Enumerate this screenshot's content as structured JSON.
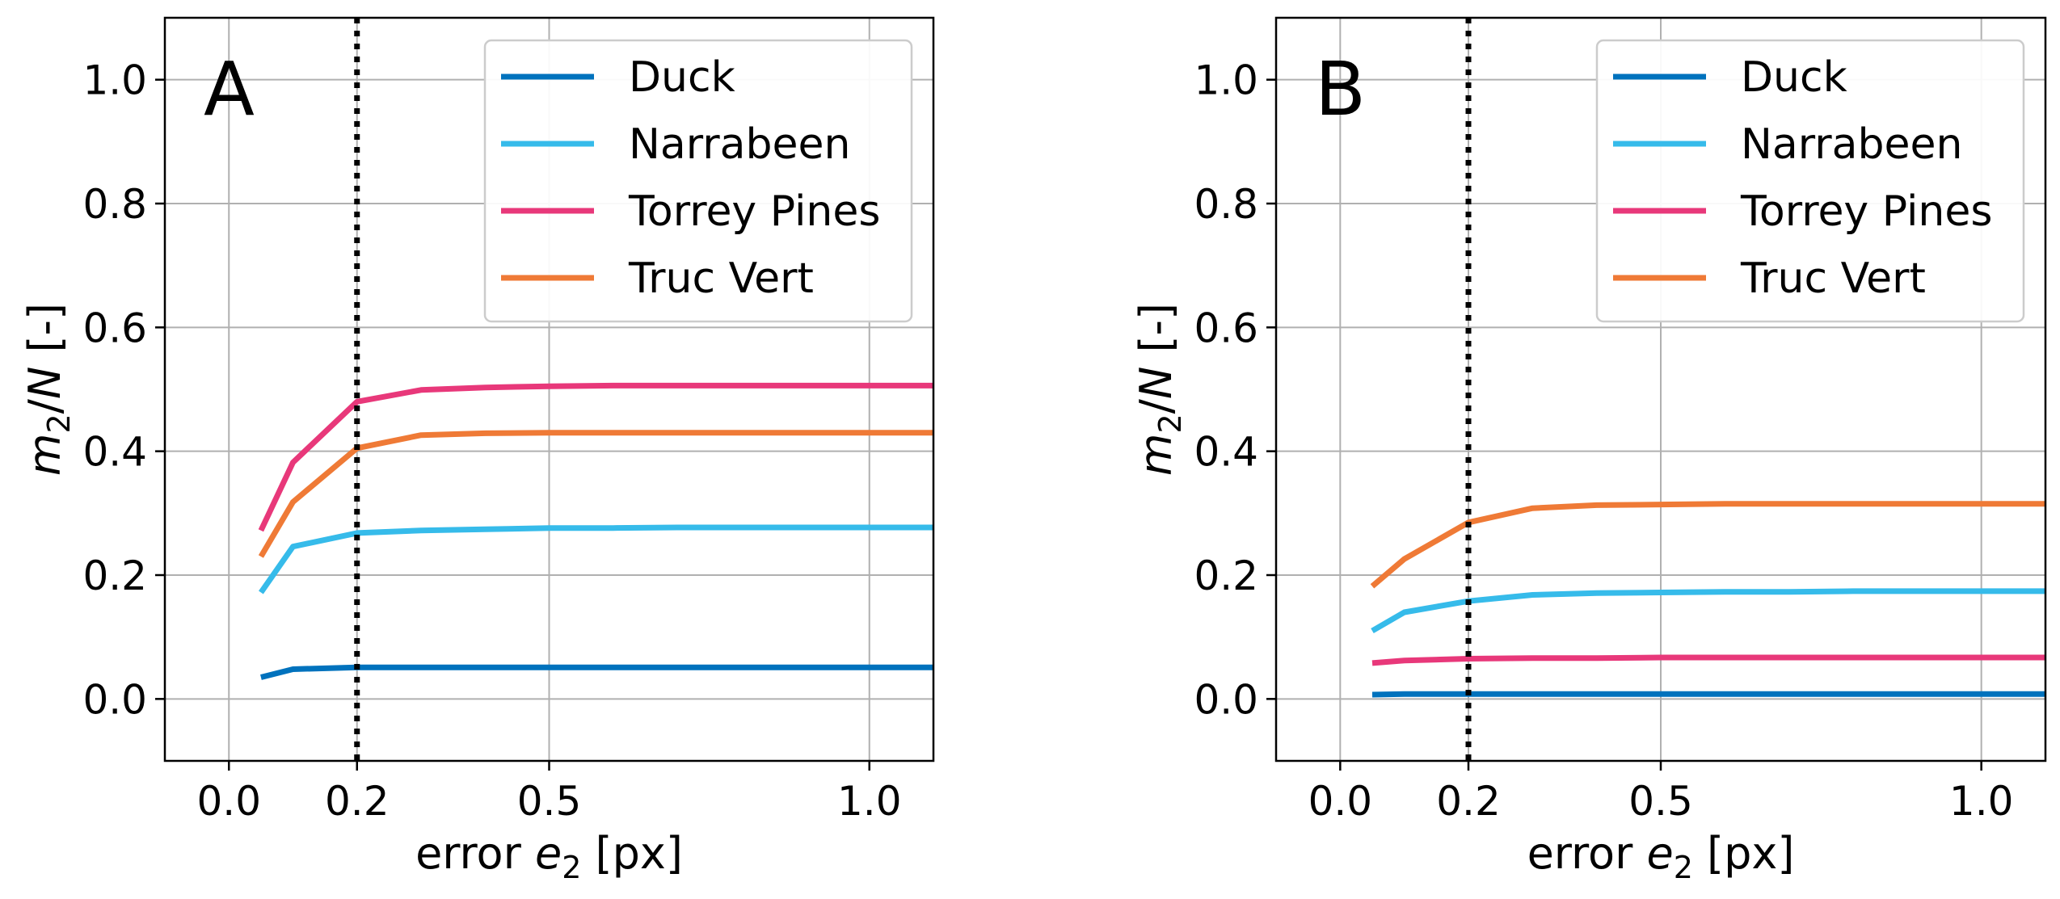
{
  "chart_data": [
    {
      "type": "line",
      "panel_label": "A",
      "xlabel": "error e_2 [px]",
      "xlabel_main": "error ",
      "xlabel_var": "e",
      "xlabel_sub": "2",
      "xlabel_unit": " [px]",
      "ylabel": "m_2/N [-]",
      "ylabel_var": "m",
      "ylabel_sub": "2",
      "ylabel_rest": "/",
      "ylabel_var2": "N",
      "ylabel_unit": " [-]",
      "xlim": [
        -0.1,
        1.1
      ],
      "ylim": [
        -0.1,
        1.1
      ],
      "xticks": [
        0.0,
        0.2,
        0.5,
        1.0
      ],
      "xtick_labels": [
        "0.0",
        "0.2",
        "0.5",
        "1.0"
      ],
      "yticks": [
        0.0,
        0.2,
        0.4,
        0.6,
        0.8,
        1.0
      ],
      "ytick_labels": [
        "0.0",
        "0.2",
        "0.4",
        "0.6",
        "0.8",
        "1.0"
      ],
      "grid": true,
      "legend_position": "upper-right",
      "vline_x": 0.2,
      "x": [
        0.05,
        0.1,
        0.2,
        0.3,
        0.4,
        0.5,
        0.6,
        0.7,
        0.8,
        0.9,
        1.0,
        1.1
      ],
      "series": [
        {
          "name": "Duck",
          "color": "#0072bd",
          "values": [
            0.035,
            0.048,
            0.051,
            0.051,
            0.051,
            0.051,
            0.051,
            0.051,
            0.051,
            0.051,
            0.051,
            0.051
          ]
        },
        {
          "name": "Narrabeen",
          "color": "#36bbea",
          "values": [
            0.172,
            0.246,
            0.268,
            0.272,
            0.274,
            0.276,
            0.276,
            0.277,
            0.277,
            0.277,
            0.277,
            0.277
          ]
        },
        {
          "name": "Torrey Pines",
          "color": "#e8387a",
          "values": [
            0.272,
            0.382,
            0.48,
            0.499,
            0.503,
            0.505,
            0.506,
            0.506,
            0.506,
            0.506,
            0.506,
            0.506
          ]
        },
        {
          "name": "Truc Vert",
          "color": "#ef7a36",
          "values": [
            0.23,
            0.318,
            0.405,
            0.426,
            0.429,
            0.43,
            0.43,
            0.43,
            0.43,
            0.43,
            0.43,
            0.43
          ]
        }
      ]
    },
    {
      "type": "line",
      "panel_label": "B",
      "xlabel": "error e_2 [px]",
      "xlabel_main": "error ",
      "xlabel_var": "e",
      "xlabel_sub": "2",
      "xlabel_unit": " [px]",
      "ylabel": "m_2/N [-]",
      "ylabel_var": "m",
      "ylabel_sub": "2",
      "ylabel_rest": "/",
      "ylabel_var2": "N",
      "ylabel_unit": " [-]",
      "xlim": [
        -0.1,
        1.1
      ],
      "ylim": [
        -0.1,
        1.1
      ],
      "xticks": [
        0.0,
        0.2,
        0.5,
        1.0
      ],
      "xtick_labels": [
        "0.0",
        "0.2",
        "0.5",
        "1.0"
      ],
      "yticks": [
        0.0,
        0.2,
        0.4,
        0.6,
        0.8,
        1.0
      ],
      "ytick_labels": [
        "0.0",
        "0.2",
        "0.4",
        "0.6",
        "0.8",
        "1.0"
      ],
      "grid": true,
      "legend_position": "upper-right",
      "vline_x": 0.2,
      "x": [
        0.05,
        0.1,
        0.2,
        0.3,
        0.4,
        0.5,
        0.6,
        0.7,
        0.8,
        0.9,
        1.0,
        1.1
      ],
      "series": [
        {
          "name": "Duck",
          "color": "#0072bd",
          "values": [
            0.007,
            0.008,
            0.008,
            0.008,
            0.008,
            0.008,
            0.008,
            0.008,
            0.008,
            0.008,
            0.008,
            0.008
          ]
        },
        {
          "name": "Narrabeen",
          "color": "#36bbea",
          "values": [
            0.11,
            0.14,
            0.158,
            0.168,
            0.171,
            0.172,
            0.173,
            0.173,
            0.174,
            0.174,
            0.174,
            0.174
          ]
        },
        {
          "name": "Torrey Pines",
          "color": "#e8387a",
          "values": [
            0.058,
            0.062,
            0.065,
            0.066,
            0.066,
            0.067,
            0.067,
            0.067,
            0.067,
            0.067,
            0.067,
            0.067
          ]
        },
        {
          "name": "Truc Vert",
          "color": "#ef7a36",
          "values": [
            0.182,
            0.226,
            0.285,
            0.308,
            0.313,
            0.314,
            0.315,
            0.315,
            0.315,
            0.315,
            0.315,
            0.315
          ]
        }
      ]
    }
  ]
}
